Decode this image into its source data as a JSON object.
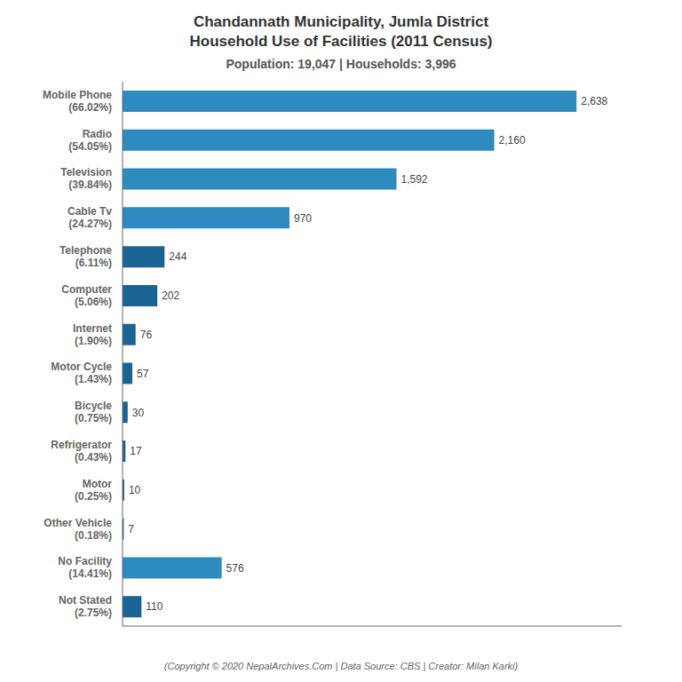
{
  "chart_data": {
    "type": "bar",
    "orientation": "horizontal",
    "title": "Chandannath Municipality, Jumla District\nHousehold Use of Facilities (2011 Census)",
    "subtitle": "Population: 19,047 | Households: 3,996",
    "annotations": [
      "(Copyright © 2020 NepalArchives.Com | Data Source: CBS | Creator: Milan Karki)"
    ],
    "categories": [
      "Mobile Phone\n(66.02%)",
      "Radio\n(54.05%)",
      "Television\n(39.84%)",
      "Cable Tv\n(24.27%)",
      "Telephone\n(6.11%)",
      "Computer\n(5.06%)",
      "Internet\n(1.90%)",
      "Motor Cycle\n(1.43%)",
      "Bicycle\n(0.75%)",
      "Refrigerator\n(0.43%)",
      "Motor\n(0.25%)",
      "Other Vehicle\n(0.18%)",
      "No Facility\n(14.41%)",
      "Not Stated\n(2.75%)"
    ],
    "values": [
      2638,
      2160,
      1592,
      970,
      244,
      202,
      76,
      57,
      30,
      17,
      10,
      7,
      576,
      110
    ],
    "value_labels": [
      "2,638",
      "2,160",
      "1,592",
      "970",
      "244",
      "202",
      "76",
      "57",
      "30",
      "17",
      "10",
      "7",
      "576",
      "110"
    ],
    "colors": [
      "#2e8bc0",
      "#2e8bc0",
      "#2e8bc0",
      "#2e8bc0",
      "#1a6494",
      "#1a6494",
      "#1a6494",
      "#1a6494",
      "#1a6494",
      "#1a6494",
      "#1a6494",
      "#1a6494",
      "#2e8bc0",
      "#1a6494"
    ],
    "xlim": [
      0,
      2900
    ],
    "data_labels": true,
    "tick_labels": "y",
    "grid": false
  }
}
